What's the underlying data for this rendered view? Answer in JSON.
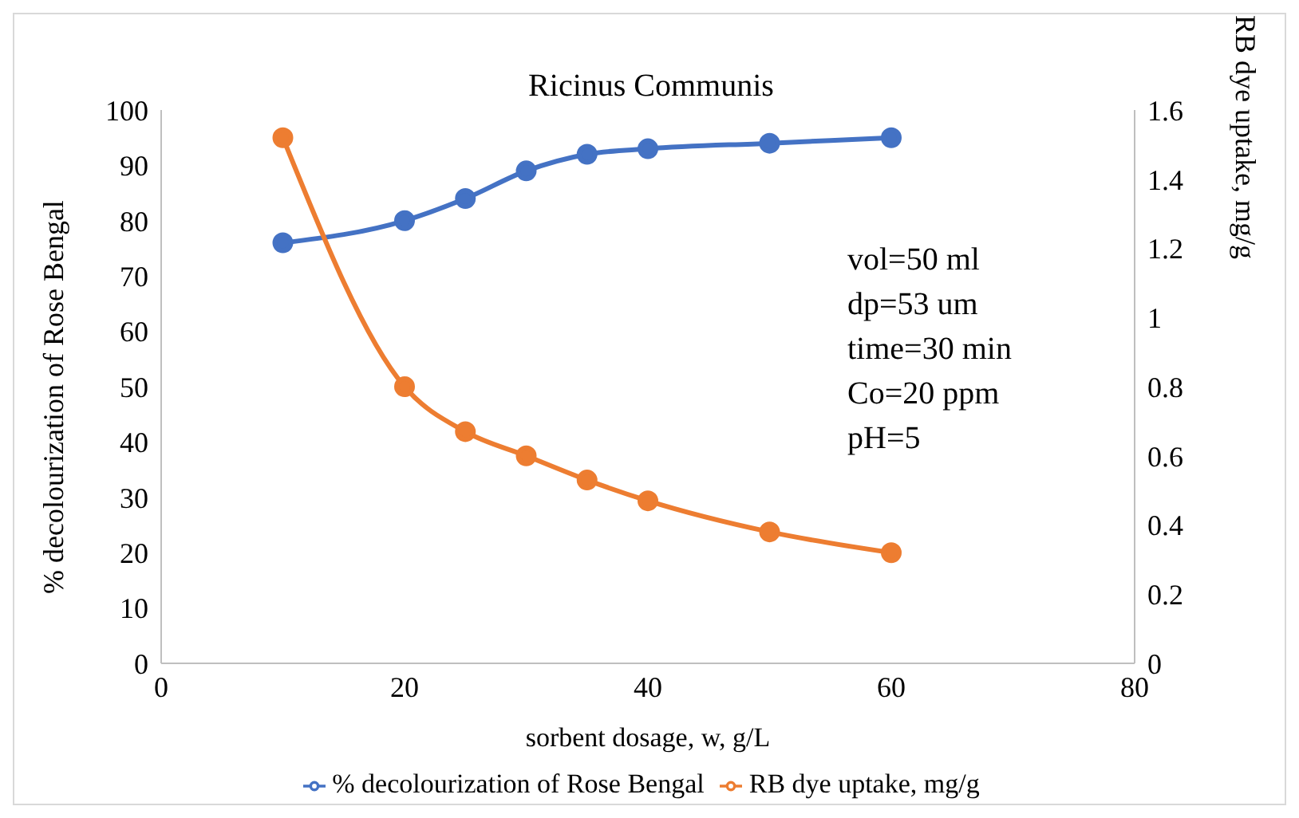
{
  "chart_data": {
    "type": "line",
    "title": "Ricinus Communis",
    "xlabel": "sorbent dosage, w, g/L",
    "ylabel": "% decolourization of Rose Bengal",
    "y2label": "RB dye uptake, mg/g",
    "x": [
      10,
      20,
      25,
      30,
      35,
      40,
      50,
      60
    ],
    "series": [
      {
        "name": "% decolourization of Rose Bengal",
        "color": "#4472c4",
        "values": [
          76,
          80,
          84,
          89,
          92,
          93,
          94,
          95
        ]
      },
      {
        "name": "RB dye uptake, mg/g",
        "color": "#ed7d31",
        "values": [
          1.52,
          0.8,
          0.67,
          0.6,
          0.53,
          0.47,
          0.38,
          0.32
        ],
        "axis": "y2"
      }
    ],
    "xlim": [
      0,
      80
    ],
    "xticks": [
      0,
      20,
      40,
      60,
      80
    ],
    "ylim": [
      0,
      100
    ],
    "yticks": [
      0,
      10,
      20,
      30,
      40,
      50,
      60,
      70,
      80,
      90,
      100
    ],
    "y2lim": [
      0,
      1.6
    ],
    "y2ticks": [
      0,
      0.2,
      0.4,
      0.6,
      0.8,
      1,
      1.2,
      1.4,
      1.6
    ],
    "annotations": [
      "vol=50 ml",
      "dp=53 um",
      "time=30 min",
      "Co=20 ppm",
      "pH=5"
    ],
    "marker": "circle",
    "line_style": "solid",
    "legend": "bottom"
  }
}
